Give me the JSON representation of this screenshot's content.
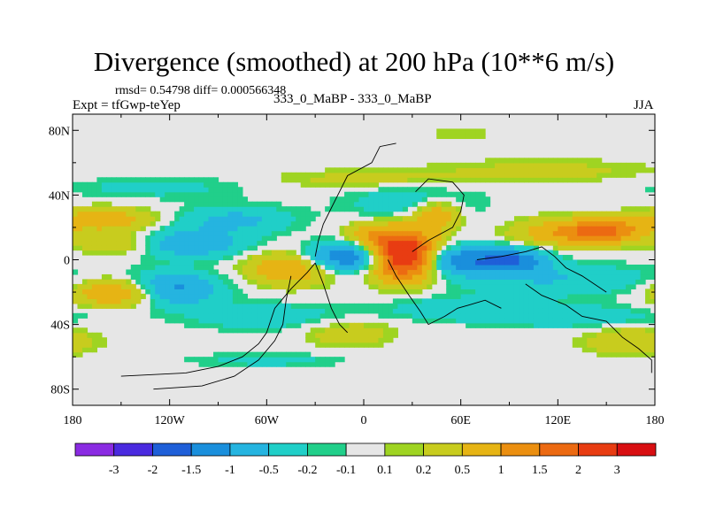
{
  "title": "Divergence (smoothed) at 200 hPa (10**6 m/s)",
  "rmsd_line": "rmsd= 0.54798 diff= 0.000566348",
  "experiment": "Expt = tfGwp-teYep",
  "runs": "333_0_MaBP - 333_0_MaBP",
  "season": "JJA",
  "chart_data": {
    "type": "heatmap",
    "title": "Divergence (smoothed) at 200 hPa (10**6 m/s)",
    "xlim": [
      -180,
      180
    ],
    "ylim": [
      -90,
      90
    ],
    "x_ticks": [
      {
        "value": -180,
        "label": "180"
      },
      {
        "value": -120,
        "label": "120W"
      },
      {
        "value": -60,
        "label": "60W"
      },
      {
        "value": 0,
        "label": "0"
      },
      {
        "value": 60,
        "label": "60E"
      },
      {
        "value": 120,
        "label": "120E"
      },
      {
        "value": 180,
        "label": "180"
      }
    ],
    "y_ticks": [
      {
        "value": 80,
        "label": "80N"
      },
      {
        "value": 40,
        "label": "40N"
      },
      {
        "value": 0,
        "label": "0"
      },
      {
        "value": -40,
        "label": "40S"
      },
      {
        "value": -80,
        "label": "80S"
      }
    ],
    "colorbar": {
      "colors": [
        "#8a2be2",
        "#4a2adf",
        "#1f5fd8",
        "#1a8fdc",
        "#25b4e0",
        "#20cfc8",
        "#21cf8a",
        "#e6e6e6",
        "#9fd422",
        "#c8cc1e",
        "#e6b414",
        "#eb8f10",
        "#ec6a12",
        "#e83c12",
        "#d80f12"
      ],
      "labels": [
        "-3",
        "-2",
        "-1.5",
        "-1",
        "-0.5",
        "-0.2",
        "-0.1",
        "0.1",
        "0.2",
        "0.5",
        "1",
        "1.5",
        "2",
        "3"
      ]
    },
    "features": [
      {
        "lon": 25,
        "lat": 3,
        "sx": 14,
        "sy": 10,
        "value": 3.2
      },
      {
        "lon": 45,
        "lat": 28,
        "sx": 10,
        "sy": 6,
        "value": 1.0
      },
      {
        "lon": 5,
        "lat": 15,
        "sx": 12,
        "sy": 6,
        "value": 0.7
      },
      {
        "lon": -10,
        "lat": 2,
        "sx": 18,
        "sy": 6,
        "value": -1.6
      },
      {
        "lon": 60,
        "lat": 0,
        "sx": 22,
        "sy": 6,
        "value": -1.4
      },
      {
        "lon": 95,
        "lat": 0,
        "sx": 14,
        "sy": 5,
        "value": -1.1
      },
      {
        "lon": 125,
        "lat": 17,
        "sx": 22,
        "sy": 6,
        "value": 0.9
      },
      {
        "lon": 150,
        "lat": 18,
        "sx": 16,
        "sy": 5,
        "value": 1.3
      },
      {
        "lon": 120,
        "lat": -12,
        "sx": 45,
        "sy": 7,
        "value": -0.5
      },
      {
        "lon": -45,
        "lat": -5,
        "sx": 18,
        "sy": 7,
        "value": 1.0
      },
      {
        "lon": -110,
        "lat": 10,
        "sx": 25,
        "sy": 6,
        "value": -0.9
      },
      {
        "lon": -120,
        "lat": -18,
        "sx": 20,
        "sy": 7,
        "value": -1.3
      },
      {
        "lon": -150,
        "lat": -20,
        "sx": 20,
        "sy": 6,
        "value": 1.2
      },
      {
        "lon": -150,
        "lat": 10,
        "sx": 18,
        "sy": 5,
        "value": 0.6
      },
      {
        "lon": -160,
        "lat": 25,
        "sx": 22,
        "sy": 5,
        "value": 0.8
      },
      {
        "lon": -80,
        "lat": 25,
        "sx": 25,
        "sy": 6,
        "value": -0.6
      },
      {
        "lon": 30,
        "lat": 35,
        "sx": 30,
        "sy": 8,
        "value": -0.4
      },
      {
        "lon": -60,
        "lat": -35,
        "sx": 35,
        "sy": 6,
        "value": -0.4
      },
      {
        "lon": 60,
        "lat": -30,
        "sx": 35,
        "sy": 5,
        "value": -0.4
      },
      {
        "lon": 130,
        "lat": -35,
        "sx": 40,
        "sy": 5,
        "value": -0.4
      },
      {
        "lon": -130,
        "lat": 45,
        "sx": 40,
        "sy": 5,
        "value": -0.3
      },
      {
        "lon": 110,
        "lat": 55,
        "sx": 50,
        "sy": 5,
        "value": 0.3
      },
      {
        "lon": 0,
        "lat": 50,
        "sx": 40,
        "sy": 4,
        "value": 0.3
      },
      {
        "lon": -10,
        "lat": -45,
        "sx": 20,
        "sy": 6,
        "value": 0.4
      },
      {
        "lon": -60,
        "lat": -62,
        "sx": 35,
        "sy": 3,
        "value": -0.3
      },
      {
        "lon": 60,
        "lat": 78,
        "sx": 20,
        "sy": 3,
        "value": 0.15
      },
      {
        "lon": 165,
        "lat": -50,
        "sx": 20,
        "sy": 6,
        "value": 0.5
      }
    ],
    "coastline_outlines": [
      [
        [
          -150,
          -72
        ],
        [
          -110,
          -70
        ],
        [
          -90,
          -66
        ],
        [
          -75,
          -60
        ],
        [
          -65,
          -52
        ],
        [
          -60,
          -45
        ],
        [
          -55,
          -30
        ],
        [
          -45,
          -18
        ],
        [
          -35,
          -8
        ],
        [
          -30,
          -2
        ]
      ],
      [
        [
          -130,
          -80
        ],
        [
          -100,
          -78
        ],
        [
          -80,
          -72
        ],
        [
          -65,
          -62
        ],
        [
          -55,
          -50
        ],
        [
          -50,
          -40
        ],
        [
          -48,
          -25
        ],
        [
          -45,
          -10
        ]
      ],
      [
        [
          -30,
          2
        ],
        [
          -28,
          12
        ],
        [
          -25,
          22
        ],
        [
          -20,
          32
        ],
        [
          -15,
          42
        ],
        [
          -10,
          52
        ],
        [
          5,
          60
        ],
        [
          10,
          70
        ],
        [
          20,
          72
        ]
      ],
      [
        [
          -30,
          -2
        ],
        [
          -25,
          -15
        ],
        [
          -20,
          -30
        ],
        [
          -15,
          -40
        ],
        [
          -10,
          -45
        ]
      ],
      [
        [
          15,
          0
        ],
        [
          20,
          -10
        ],
        [
          28,
          -22
        ],
        [
          35,
          -32
        ],
        [
          40,
          -40
        ],
        [
          50,
          -35
        ],
        [
          58,
          -30
        ],
        [
          65,
          -28
        ],
        [
          75,
          -25
        ],
        [
          85,
          -30
        ]
      ],
      [
        [
          30,
          5
        ],
        [
          40,
          12
        ],
        [
          55,
          20
        ],
        [
          60,
          30
        ],
        [
          62,
          40
        ],
        [
          55,
          48
        ],
        [
          40,
          50
        ],
        [
          32,
          42
        ]
      ],
      [
        [
          70,
          0
        ],
        [
          85,
          2
        ],
        [
          100,
          5
        ],
        [
          110,
          8
        ],
        [
          118,
          2
        ],
        [
          125,
          -5
        ],
        [
          135,
          -10
        ],
        [
          150,
          -20
        ]
      ],
      [
        [
          100,
          -15
        ],
        [
          110,
          -22
        ],
        [
          125,
          -28
        ],
        [
          135,
          -35
        ],
        [
          150,
          -38
        ],
        [
          160,
          -48
        ],
        [
          170,
          -55
        ],
        [
          178,
          -62
        ],
        [
          178,
          -70
        ]
      ]
    ]
  }
}
